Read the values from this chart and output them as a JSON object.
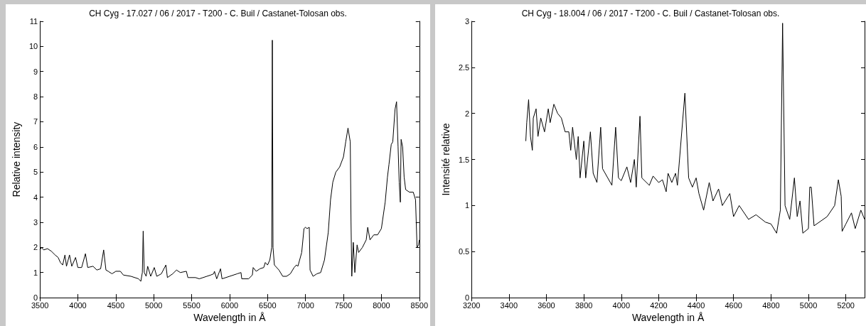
{
  "chart_data": [
    {
      "type": "line",
      "title": "CH Cyg - 17.027 / 06 / 2017 - T200 - C. Buil / Castanet-Tolosan obs.",
      "xlabel": "Wavelength in Å",
      "ylabel": "Relative intensity",
      "xlim": [
        3500,
        8500
      ],
      "xticks": [
        3500,
        4000,
        4500,
        5000,
        5500,
        6000,
        6500,
        7000,
        7500,
        8000,
        8500
      ],
      "ylim": [
        0,
        11
      ],
      "yticks": [
        0,
        1,
        2,
        3,
        4,
        5,
        6,
        7,
        8,
        9,
        10,
        11
      ],
      "marker": "none",
      "line_style": "solid",
      "series": [
        {
          "color": "#000000",
          "x": [
            3500,
            3520,
            3550,
            3600,
            3650,
            3700,
            3740,
            3770,
            3800,
            3830,
            3850,
            3890,
            3920,
            3970,
            4000,
            4050,
            4100,
            4130,
            4200,
            4250,
            4300,
            4340,
            4370,
            4400,
            4450,
            4500,
            4560,
            4600,
            4700,
            4800,
            4830,
            4850,
            4861,
            4875,
            4900,
            4920,
            4960,
            5007,
            5040,
            5100,
            5160,
            5180,
            5250,
            5300,
            5350,
            5430,
            5450,
            5550,
            5600,
            5700,
            5750,
            5790,
            5800,
            5830,
            5880,
            5900,
            6000,
            6100,
            6150,
            6160,
            6250,
            6300,
            6310,
            6350,
            6400,
            6450,
            6470,
            6500,
            6530,
            6555,
            6563,
            6572,
            6590,
            6650,
            6700,
            6750,
            6800,
            6850,
            6880,
            6900,
            6950,
            6980,
            7000,
            7020,
            7050,
            7060,
            7100,
            7150,
            7200,
            7250,
            7300,
            7330,
            7360,
            7400,
            7450,
            7500,
            7530,
            7560,
            7590,
            7600,
            7610,
            7630,
            7650,
            7680,
            7700,
            7750,
            7800,
            7820,
            7850,
            7900,
            7950,
            8000,
            8050,
            8080,
            8100,
            8130,
            8150,
            8180,
            8200,
            8220,
            8235,
            8250,
            8260,
            8280,
            8300,
            8320,
            8370,
            8420,
            8450,
            8470,
            8490,
            8500
          ],
          "values": [
            1.9,
            2.0,
            1.9,
            1.95,
            1.85,
            1.7,
            1.6,
            1.4,
            1.3,
            1.7,
            1.25,
            1.7,
            1.25,
            1.6,
            1.2,
            1.2,
            1.75,
            1.2,
            1.25,
            1.1,
            1.15,
            1.9,
            1.1,
            1.05,
            0.95,
            1.05,
            1.05,
            0.9,
            0.85,
            0.75,
            0.65,
            1.0,
            2.65,
            1.0,
            0.85,
            1.25,
            0.85,
            1.2,
            0.85,
            0.95,
            1.3,
            0.8,
            0.95,
            1.1,
            1.0,
            1.05,
            0.8,
            0.8,
            0.75,
            0.85,
            0.9,
            0.95,
            1.05,
            0.75,
            1.15,
            0.75,
            0.85,
            0.95,
            1.0,
            0.75,
            0.75,
            0.9,
            1.2,
            1.05,
            1.15,
            1.2,
            1.4,
            1.3,
            1.5,
            2.0,
            10.25,
            2.0,
            1.3,
            1.1,
            0.85,
            0.85,
            0.95,
            1.2,
            1.3,
            1.25,
            1.8,
            2.75,
            2.8,
            2.75,
            2.8,
            1.1,
            0.85,
            0.95,
            1.0,
            1.5,
            2.6,
            3.9,
            4.6,
            5.0,
            5.2,
            5.6,
            6.2,
            6.75,
            6.2,
            3.0,
            0.85,
            2.2,
            1.0,
            2.1,
            1.8,
            2.0,
            2.3,
            2.8,
            2.3,
            2.5,
            2.5,
            2.75,
            3.8,
            4.8,
            5.3,
            6.1,
            6.2,
            7.5,
            7.8,
            6.0,
            4.6,
            3.8,
            6.3,
            6.0,
            4.8,
            4.3,
            4.2,
            4.2,
            3.9,
            2.0,
            2.1,
            2.3
          ]
        }
      ]
    },
    {
      "type": "line",
      "title": "CH Cyg - 18.004 / 06 / 2017 - T200 - C. Buil / Castanet-Tolosan obs.",
      "xlabel": "Wavelength in Å",
      "ylabel": "Intensité relative",
      "xlim": [
        3200,
        5300
      ],
      "xticks": [
        3200,
        3400,
        3600,
        3800,
        4000,
        4200,
        4400,
        4600,
        4800,
        5000,
        5200
      ],
      "ylim": [
        0,
        3
      ],
      "yticks": [
        0,
        0.5,
        1,
        1.5,
        2,
        2.5,
        3
      ],
      "marker": "none",
      "line_style": "solid",
      "series": [
        {
          "color": "#000000",
          "x": [
            3490,
            3495,
            3505,
            3515,
            3525,
            3530,
            3545,
            3555,
            3570,
            3590,
            3610,
            3620,
            3640,
            3660,
            3680,
            3700,
            3720,
            3730,
            3740,
            3760,
            3770,
            3780,
            3800,
            3810,
            3835,
            3850,
            3870,
            3890,
            3900,
            3950,
            3970,
            3985,
            4000,
            4030,
            4050,
            4070,
            4080,
            4100,
            4110,
            4150,
            4170,
            4200,
            4220,
            4240,
            4250,
            4270,
            4290,
            4300,
            4340,
            4360,
            4380,
            4400,
            4415,
            4440,
            4470,
            4490,
            4520,
            4540,
            4580,
            4600,
            4630,
            4680,
            4720,
            4770,
            4800,
            4830,
            4850,
            4862,
            4875,
            4900,
            4925,
            4940,
            4955,
            4970,
            5000,
            5007,
            5015,
            5030,
            5100,
            5140,
            5160,
            5175,
            5180,
            5200,
            5230,
            5250,
            5280,
            5300
          ],
          "values": [
            1.7,
            1.9,
            2.15,
            1.75,
            1.6,
            1.95,
            2.05,
            1.75,
            1.95,
            1.8,
            2.05,
            1.9,
            2.1,
            2.0,
            1.95,
            1.8,
            1.8,
            1.6,
            1.85,
            1.5,
            1.75,
            1.3,
            1.7,
            1.3,
            1.8,
            1.35,
            1.25,
            1.85,
            1.4,
            1.22,
            1.85,
            1.3,
            1.27,
            1.42,
            1.25,
            1.5,
            1.2,
            1.97,
            1.3,
            1.22,
            1.32,
            1.25,
            1.28,
            1.15,
            1.35,
            1.25,
            1.35,
            1.22,
            2.22,
            1.3,
            1.2,
            1.3,
            1.13,
            0.95,
            1.25,
            1.05,
            1.18,
            1.0,
            1.13,
            0.88,
            1.0,
            0.85,
            0.9,
            0.82,
            0.8,
            0.7,
            0.95,
            2.98,
            1.0,
            0.85,
            1.3,
            0.88,
            1.05,
            0.7,
            0.75,
            1.2,
            1.2,
            0.78,
            0.88,
            1.0,
            1.28,
            1.1,
            0.72,
            0.8,
            0.92,
            0.75,
            0.95,
            0.85
          ]
        }
      ]
    }
  ]
}
